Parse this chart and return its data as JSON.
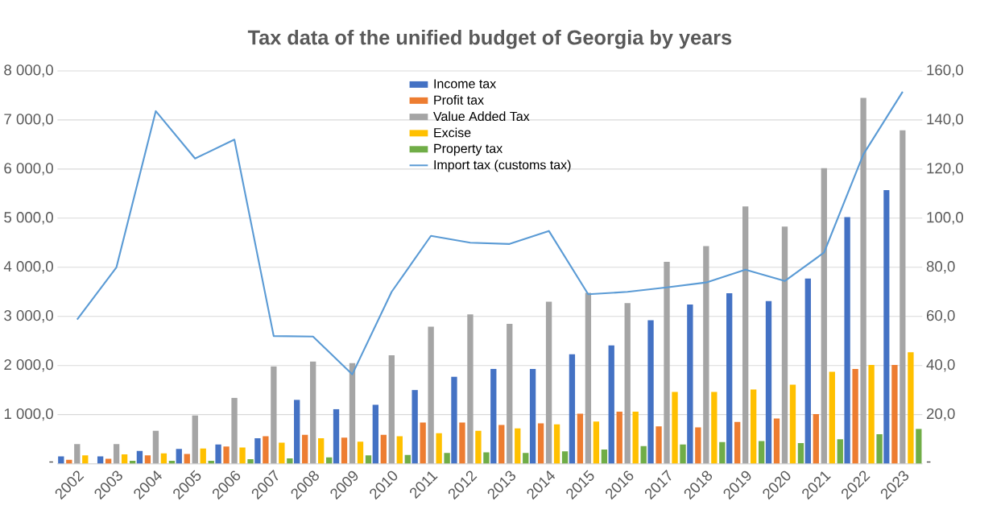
{
  "chart_data": {
    "type": "bar",
    "title": "Tax data of the unified budget of Georgia by years",
    "categories": [
      "2002",
      "2003",
      "2004",
      "2005",
      "2006",
      "2007",
      "2008",
      "2009",
      "2010",
      "2011",
      "2012",
      "2013",
      "2014",
      "2015",
      "2016",
      "2017",
      "2018",
      "2019",
      "2020",
      "2021",
      "2022",
      "2023"
    ],
    "series": [
      {
        "name": "Income tax",
        "color": "#4472c4",
        "values": [
          150,
          150,
          260,
          300,
          390,
          520,
          1300,
          1110,
          1200,
          1500,
          1770,
          1930,
          1930,
          2230,
          2410,
          2920,
          3240,
          3470,
          3310,
          3770,
          5020,
          5570
        ]
      },
      {
        "name": "Profit tax",
        "color": "#ed7d31",
        "values": [
          80,
          100,
          170,
          200,
          350,
          560,
          590,
          530,
          590,
          840,
          840,
          790,
          820,
          1020,
          1060,
          760,
          740,
          850,
          920,
          1010,
          1930,
          2010
        ]
      },
      {
        "name": "Value Added Tax",
        "color": "#a5a5a5",
        "values": [
          400,
          400,
          670,
          980,
          1340,
          1980,
          2080,
          2050,
          2210,
          2790,
          3040,
          2850,
          3300,
          3480,
          3270,
          4110,
          4430,
          5240,
          4830,
          6020,
          7450,
          6790
        ]
      },
      {
        "name": "Excise",
        "color": "#ffc000",
        "values": [
          170,
          190,
          210,
          310,
          330,
          430,
          520,
          450,
          560,
          620,
          670,
          720,
          800,
          860,
          1060,
          1460,
          1460,
          1510,
          1610,
          1870,
          2010,
          2270
        ]
      },
      {
        "name": "Property tax",
        "color": "#70ad47",
        "values": [
          null,
          60,
          60,
          60,
          90,
          110,
          130,
          170,
          180,
          220,
          230,
          220,
          250,
          290,
          360,
          390,
          440,
          460,
          420,
          500,
          600,
          710
        ]
      },
      {
        "name": "Import tax (customs tax)",
        "color": "#5b9bd5",
        "type": "line",
        "axis": "y2",
        "values": [
          58.7,
          80,
          143.6,
          124.3,
          132,
          52,
          51.8,
          36.4,
          70,
          92.8,
          90,
          89.5,
          94.8,
          69,
          70,
          71.8,
          73.8,
          79,
          74.4,
          86,
          126,
          151.5
        ]
      }
    ],
    "ylim": [
      0,
      8000
    ],
    "yticks": [
      {
        "value": 0,
        "label": "-"
      },
      {
        "value": 1000,
        "label": "1 000,0"
      },
      {
        "value": 2000,
        "label": "2 000,0"
      },
      {
        "value": 3000,
        "label": "3 000,0"
      },
      {
        "value": 4000,
        "label": "4 000,0"
      },
      {
        "value": 5000,
        "label": "5 000,0"
      },
      {
        "value": 6000,
        "label": "6 000,0"
      },
      {
        "value": 7000,
        "label": "7 000,0"
      },
      {
        "value": 8000,
        "label": "8 000,0"
      }
    ],
    "y2lim": [
      0,
      160
    ],
    "y2ticks": [
      {
        "value": 0,
        "label": "-"
      },
      {
        "value": 20,
        "label": "20,0"
      },
      {
        "value": 40,
        "label": "40,0"
      },
      {
        "value": 60,
        "label": "60,0"
      },
      {
        "value": 80,
        "label": "80,0"
      },
      {
        "value": 100,
        "label": "100,0"
      },
      {
        "value": 120,
        "label": "120,0"
      },
      {
        "value": 140,
        "label": "140,0"
      },
      {
        "value": 160,
        "label": "160,0"
      }
    ],
    "grid": "y",
    "legend": "top",
    "marker": "none",
    "line_style": "solid"
  }
}
